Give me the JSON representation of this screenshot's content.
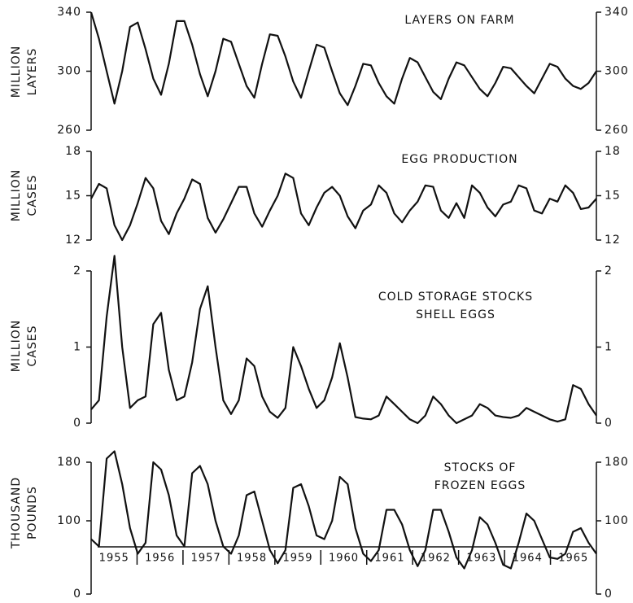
{
  "years": [
    "1955",
    "1956",
    "1957",
    "1958",
    "1959",
    "1960",
    "1961",
    "1962",
    "1963",
    "1964",
    "1965"
  ],
  "chart_data": [
    {
      "type": "line",
      "title": [
        "LAYERS ON FARM"
      ],
      "ylabel": [
        "MILLION",
        "LAYERS"
      ],
      "color": "#111111",
      "ylim": [
        260,
        340
      ],
      "yticks": [
        260,
        300,
        340
      ],
      "values": [
        340,
        322,
        300,
        278,
        300,
        330,
        333,
        315,
        295,
        284,
        305,
        334,
        334,
        318,
        298,
        283,
        300,
        322,
        320,
        305,
        290,
        282,
        305,
        325,
        324,
        310,
        293,
        282,
        300,
        318,
        316,
        300,
        285,
        277,
        290,
        305,
        304,
        292,
        283,
        278,
        295,
        309,
        306,
        296,
        286,
        281,
        295,
        306,
        304,
        296,
        288,
        283,
        292,
        303,
        302,
        296,
        290,
        285,
        295,
        305,
        303,
        295,
        290,
        288,
        292,
        300
      ]
    },
    {
      "type": "line",
      "title": [
        "EGG PRODUCTION"
      ],
      "ylabel": [
        "MILLION",
        "CASES"
      ],
      "color": "#111111",
      "ylim": [
        12,
        18
      ],
      "yticks": [
        12,
        15,
        18
      ],
      "values": [
        14.8,
        15.8,
        15.5,
        13,
        12,
        13,
        14.5,
        16.2,
        15.5,
        13.3,
        12.4,
        13.8,
        14.8,
        16.1,
        15.8,
        13.5,
        12.5,
        13.4,
        14.5,
        15.6,
        15.6,
        13.8,
        12.9,
        14,
        15,
        16.5,
        16.2,
        13.8,
        13,
        14.2,
        15.2,
        15.6,
        15,
        13.6,
        12.8,
        14,
        14.4,
        15.7,
        15.2,
        13.8,
        13.2,
        14,
        14.6,
        15.7,
        15.6,
        14,
        13.5,
        14.5,
        13.5,
        15.7,
        15.2,
        14.2,
        13.6,
        14.4,
        14.6,
        15.7,
        15.5,
        14,
        13.8,
        14.8,
        14.6,
        15.7,
        15.2,
        14.1,
        14.2,
        14.8
      ]
    },
    {
      "type": "line",
      "title": [
        "COLD STORAGE STOCKS",
        "SHELL EGGS"
      ],
      "ylabel": [
        "MILLION",
        "CASES"
      ],
      "color": "#111111",
      "ylim": [
        0,
        2.25
      ],
      "yticks": [
        0,
        1,
        2
      ],
      "values": [
        0.18,
        0.3,
        1.4,
        2.2,
        1.0,
        0.2,
        0.3,
        0.35,
        1.3,
        1.45,
        0.7,
        0.3,
        0.35,
        0.8,
        1.5,
        1.8,
        1.0,
        0.3,
        0.12,
        0.3,
        0.85,
        0.75,
        0.35,
        0.15,
        0.07,
        0.2,
        1.0,
        0.75,
        0.45,
        0.2,
        0.3,
        0.6,
        1.05,
        0.6,
        0.08,
        0.06,
        0.05,
        0.1,
        0.35,
        0.25,
        0.15,
        0.05,
        0,
        0.1,
        0.35,
        0.25,
        0.1,
        0,
        0.05,
        0.1,
        0.25,
        0.2,
        0.1,
        0.08,
        0.07,
        0.1,
        0.2,
        0.15,
        0.1,
        0.05,
        0.02,
        0.05,
        0.5,
        0.45,
        0.25,
        0.1
      ]
    },
    {
      "type": "line",
      "title": [
        "STOCKS OF",
        "FROZEN EGGS"
      ],
      "ylabel": [
        "THOUSAND",
        "POUNDS"
      ],
      "color": "#111111",
      "ylim": [
        0,
        200
      ],
      "yticks": [
        0,
        100,
        180
      ],
      "values": [
        75,
        65,
        185,
        195,
        150,
        90,
        55,
        70,
        180,
        170,
        135,
        80,
        65,
        165,
        175,
        150,
        100,
        65,
        55,
        80,
        135,
        140,
        100,
        60,
        42,
        60,
        145,
        150,
        120,
        80,
        75,
        100,
        160,
        150,
        90,
        55,
        45,
        60,
        115,
        115,
        95,
        60,
        38,
        60,
        115,
        115,
        85,
        50,
        35,
        60,
        105,
        95,
        70,
        40,
        35,
        70,
        110,
        100,
        75,
        50,
        48,
        55,
        85,
        90,
        70,
        55
      ]
    }
  ]
}
